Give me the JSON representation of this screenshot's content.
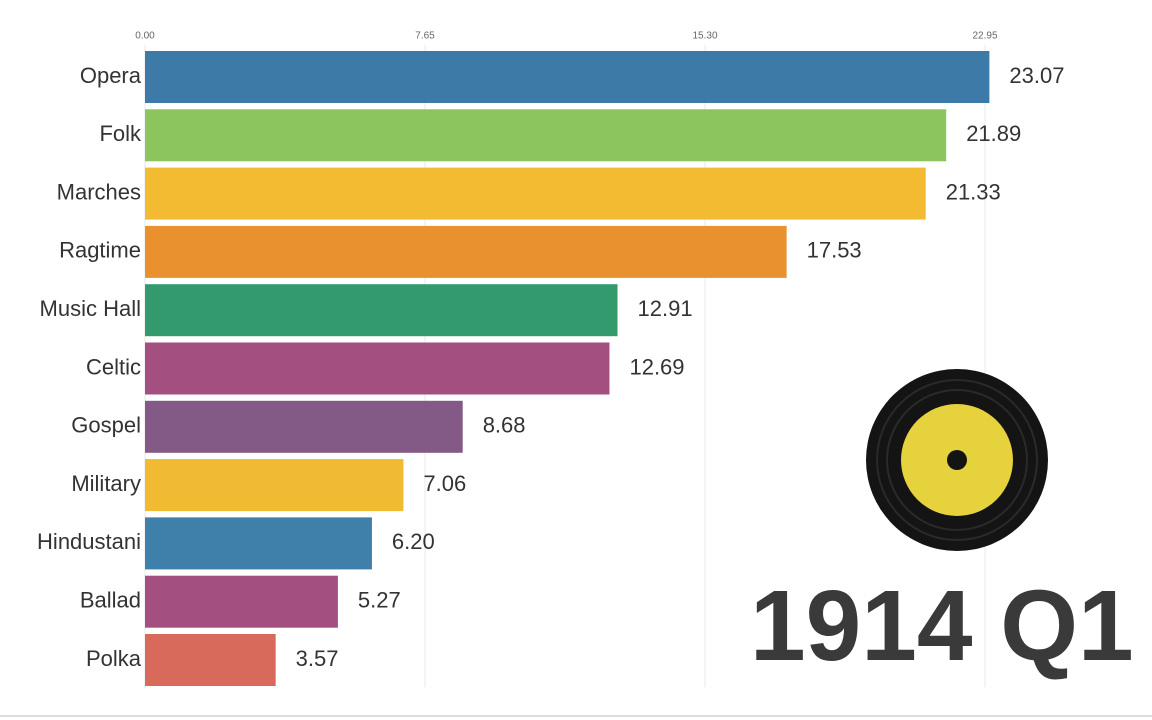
{
  "chart_data": {
    "type": "bar",
    "orientation": "horizontal",
    "annotation": "1914 Q1",
    "categories": [
      "Opera",
      "Folk",
      "Marches",
      "Ragtime",
      "Music Hall",
      "Celtic",
      "Gospel",
      "Military",
      "Hindustani",
      "Ballad",
      "Polka"
    ],
    "values": [
      23.07,
      21.89,
      21.33,
      17.53,
      12.91,
      12.69,
      8.68,
      7.06,
      6.2,
      5.27,
      3.57
    ],
    "value_labels": [
      "23.07",
      "21.89",
      "21.33",
      "17.53",
      "12.91",
      "12.69",
      "8.68",
      "7.06",
      "6.20",
      "5.27",
      "3.57"
    ],
    "colors": [
      "#3d7aa8",
      "#8cc45e",
      "#f2bb32",
      "#e8912e",
      "#329a6c",
      "#a34f80",
      "#835a85",
      "#f0bb32",
      "#3f80ab",
      "#a34f80",
      "#d86a5c"
    ],
    "xlim": [
      0,
      22.95
    ],
    "xticks": [
      {
        "value": 0,
        "label": "0.00"
      },
      7.65,
      {
        "value": 15.3,
        "label": "15.30"
      },
      22.95
    ],
    "grid": true
  }
}
